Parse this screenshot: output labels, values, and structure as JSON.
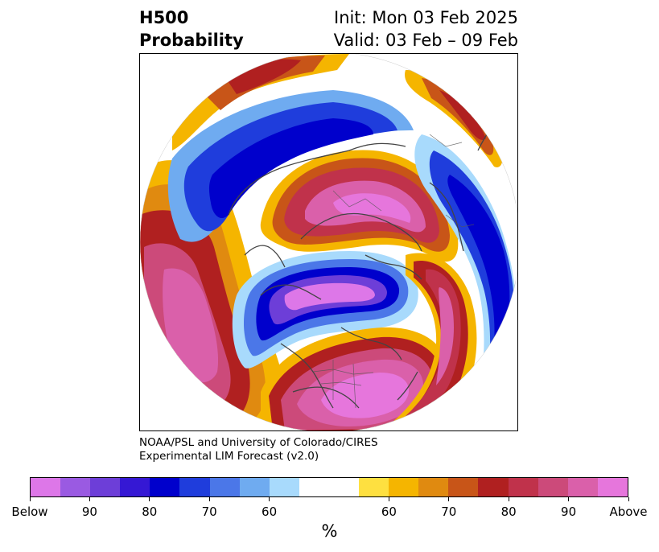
{
  "header": {
    "title_left_line1": "H500",
    "title_left_line2": "Probability",
    "title_right_line1": "Init: Mon 03 Feb 2025",
    "title_right_line2": "Valid: 03 Feb – 09 Feb"
  },
  "credit": {
    "line1": "NOAA/PSL and University of Colorado/CIRES",
    "line2": "Experimental LIM Forecast (v2.0)"
  },
  "colorbar": {
    "colors": [
      "#dd77e8",
      "#9a5ae2",
      "#6d3ed8",
      "#3518d4",
      "#0000cc",
      "#1f3ddc",
      "#4b77e8",
      "#6fabf0",
      "#a8dafc",
      "#ffffff",
      "#ffffff",
      "#fee040",
      "#f5b500",
      "#e08a10",
      "#c85518",
      "#b02020",
      "#c0324b",
      "#cc4a7a",
      "#da60aa",
      "#e676dc"
    ],
    "tick_labels": [
      "Below",
      "90",
      "80",
      "70",
      "60",
      "60",
      "70",
      "80",
      "90",
      "Above"
    ],
    "unit": "%"
  },
  "palette": {
    "below_strong": "#dd77e8",
    "blue_core": "#0000cc",
    "neutral": "#ffffff",
    "above_strong": "#e676dc",
    "red_core": "#b02020",
    "coast": "#444444"
  }
}
